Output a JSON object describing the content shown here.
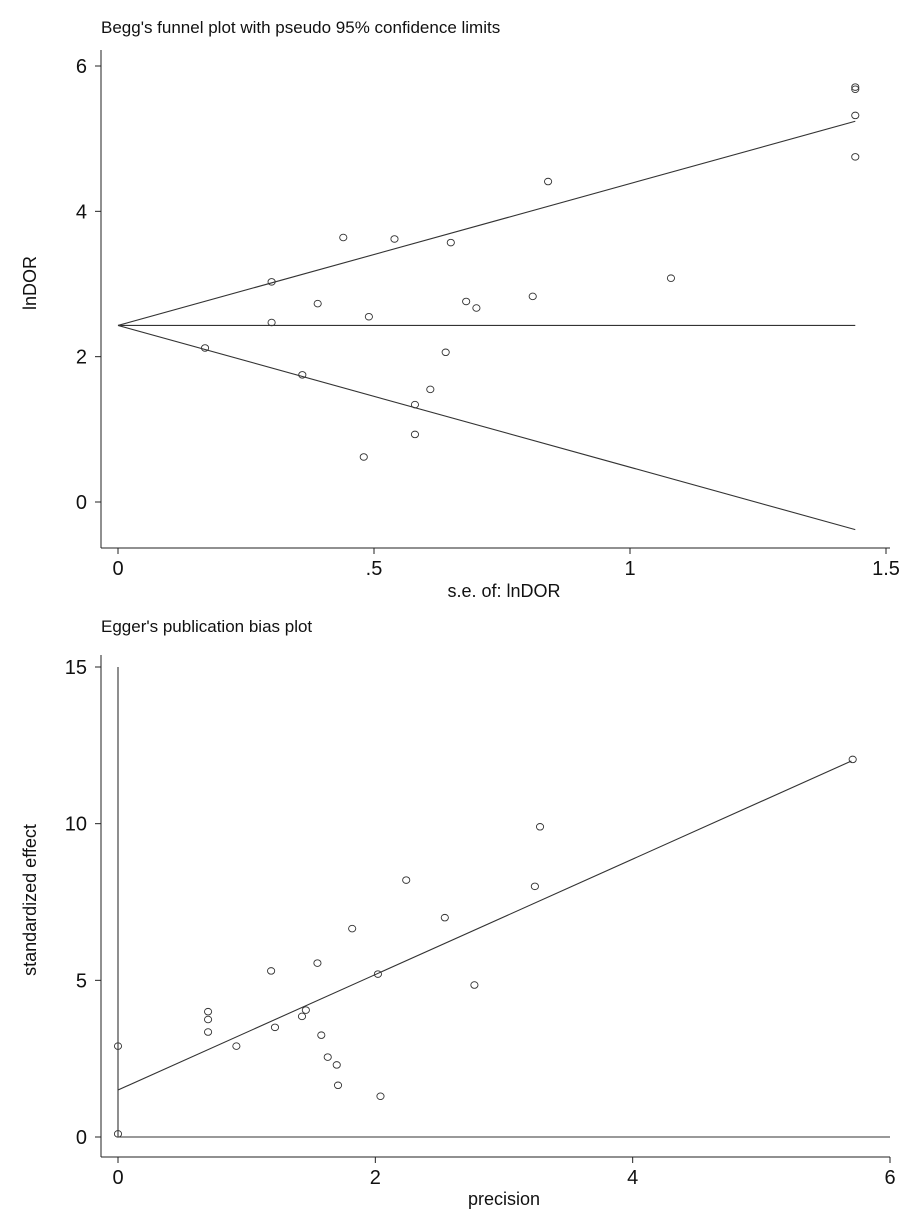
{
  "chart_data": [
    {
      "type": "scatter",
      "title": "Begg's funnel plot with pseudo 95% confidence limits",
      "xlabel": "s.e. of: lnDOR",
      "ylabel": "lnDOR",
      "xlim": [
        0,
        1.5
      ],
      "ylim": [
        -0.5,
        6.3
      ],
      "x_ticks": [
        {
          "value": 0,
          "label": "0"
        },
        {
          "value": 0.5,
          "label": ".5"
        },
        {
          "value": 1,
          "label": "1"
        },
        {
          "value": 1.5,
          "label": "1.5"
        }
      ],
      "y_ticks": [
        {
          "value": 0,
          "label": "0"
        },
        {
          "value": 2,
          "label": "2"
        },
        {
          "value": 4,
          "label": "4"
        },
        {
          "value": 6,
          "label": "6"
        }
      ],
      "lines": [
        {
          "x": [
            0,
            1.44
          ],
          "y": [
            2.43,
            5.24
          ]
        },
        {
          "x": [
            0,
            1.44
          ],
          "y": [
            2.43,
            2.43
          ]
        },
        {
          "x": [
            0,
            1.44
          ],
          "y": [
            2.43,
            -0.38
          ]
        }
      ],
      "x": [
        0.17,
        0.3,
        0.3,
        0.36,
        0.39,
        0.44,
        0.48,
        0.49,
        0.54,
        0.58,
        0.58,
        0.61,
        0.64,
        0.65,
        0.68,
        0.7,
        0.81,
        0.84,
        1.08,
        1.44,
        1.44,
        1.44,
        1.44
      ],
      "y": [
        2.12,
        3.03,
        2.47,
        1.75,
        2.73,
        3.64,
        0.62,
        2.55,
        3.62,
        0.93,
        1.34,
        1.55,
        2.06,
        3.57,
        2.76,
        2.67,
        2.83,
        4.41,
        3.08,
        5.71,
        5.68,
        5.32,
        4.75
      ]
    },
    {
      "type": "scatter",
      "title": "Egger's publication bias plot",
      "xlabel": "precision",
      "ylabel": "standardized effect",
      "xlim": [
        -0.3,
        6.0
      ],
      "ylim": [
        -0.5,
        15.3
      ],
      "x_ticks": [
        {
          "value": 0,
          "label": "0"
        },
        {
          "value": 2,
          "label": "2"
        },
        {
          "value": 4,
          "label": "4"
        },
        {
          "value": 6,
          "label": "6"
        }
      ],
      "y_ticks": [
        {
          "value": 0,
          "label": "0"
        },
        {
          "value": 5,
          "label": "5"
        },
        {
          "value": 10,
          "label": "10"
        },
        {
          "value": 15,
          "label": "15"
        }
      ],
      "lines": [
        {
          "x": [
            0,
            5.7
          ],
          "y": [
            1.5,
            12.0
          ]
        },
        {
          "x": [
            0,
            6.0
          ],
          "y": [
            0,
            0
          ]
        },
        {
          "x": [
            0,
            0
          ],
          "y": [
            0,
            15
          ]
        }
      ],
      "x": [
        0,
        0,
        0.7,
        0.7,
        0.7,
        0.92,
        1.19,
        1.22,
        1.43,
        1.46,
        1.55,
        1.58,
        1.63,
        1.7,
        1.71,
        1.82,
        2.02,
        2.04,
        2.24,
        2.54,
        2.77,
        3.24,
        3.28,
        5.71
      ],
      "y": [
        2.9,
        0.1,
        4.0,
        3.75,
        3.35,
        2.9,
        5.3,
        3.5,
        3.85,
        4.05,
        5.55,
        3.25,
        2.55,
        2.3,
        1.65,
        6.65,
        5.2,
        1.3,
        8.2,
        7.0,
        4.85,
        8.0,
        9.9,
        12.05
      ]
    }
  ]
}
